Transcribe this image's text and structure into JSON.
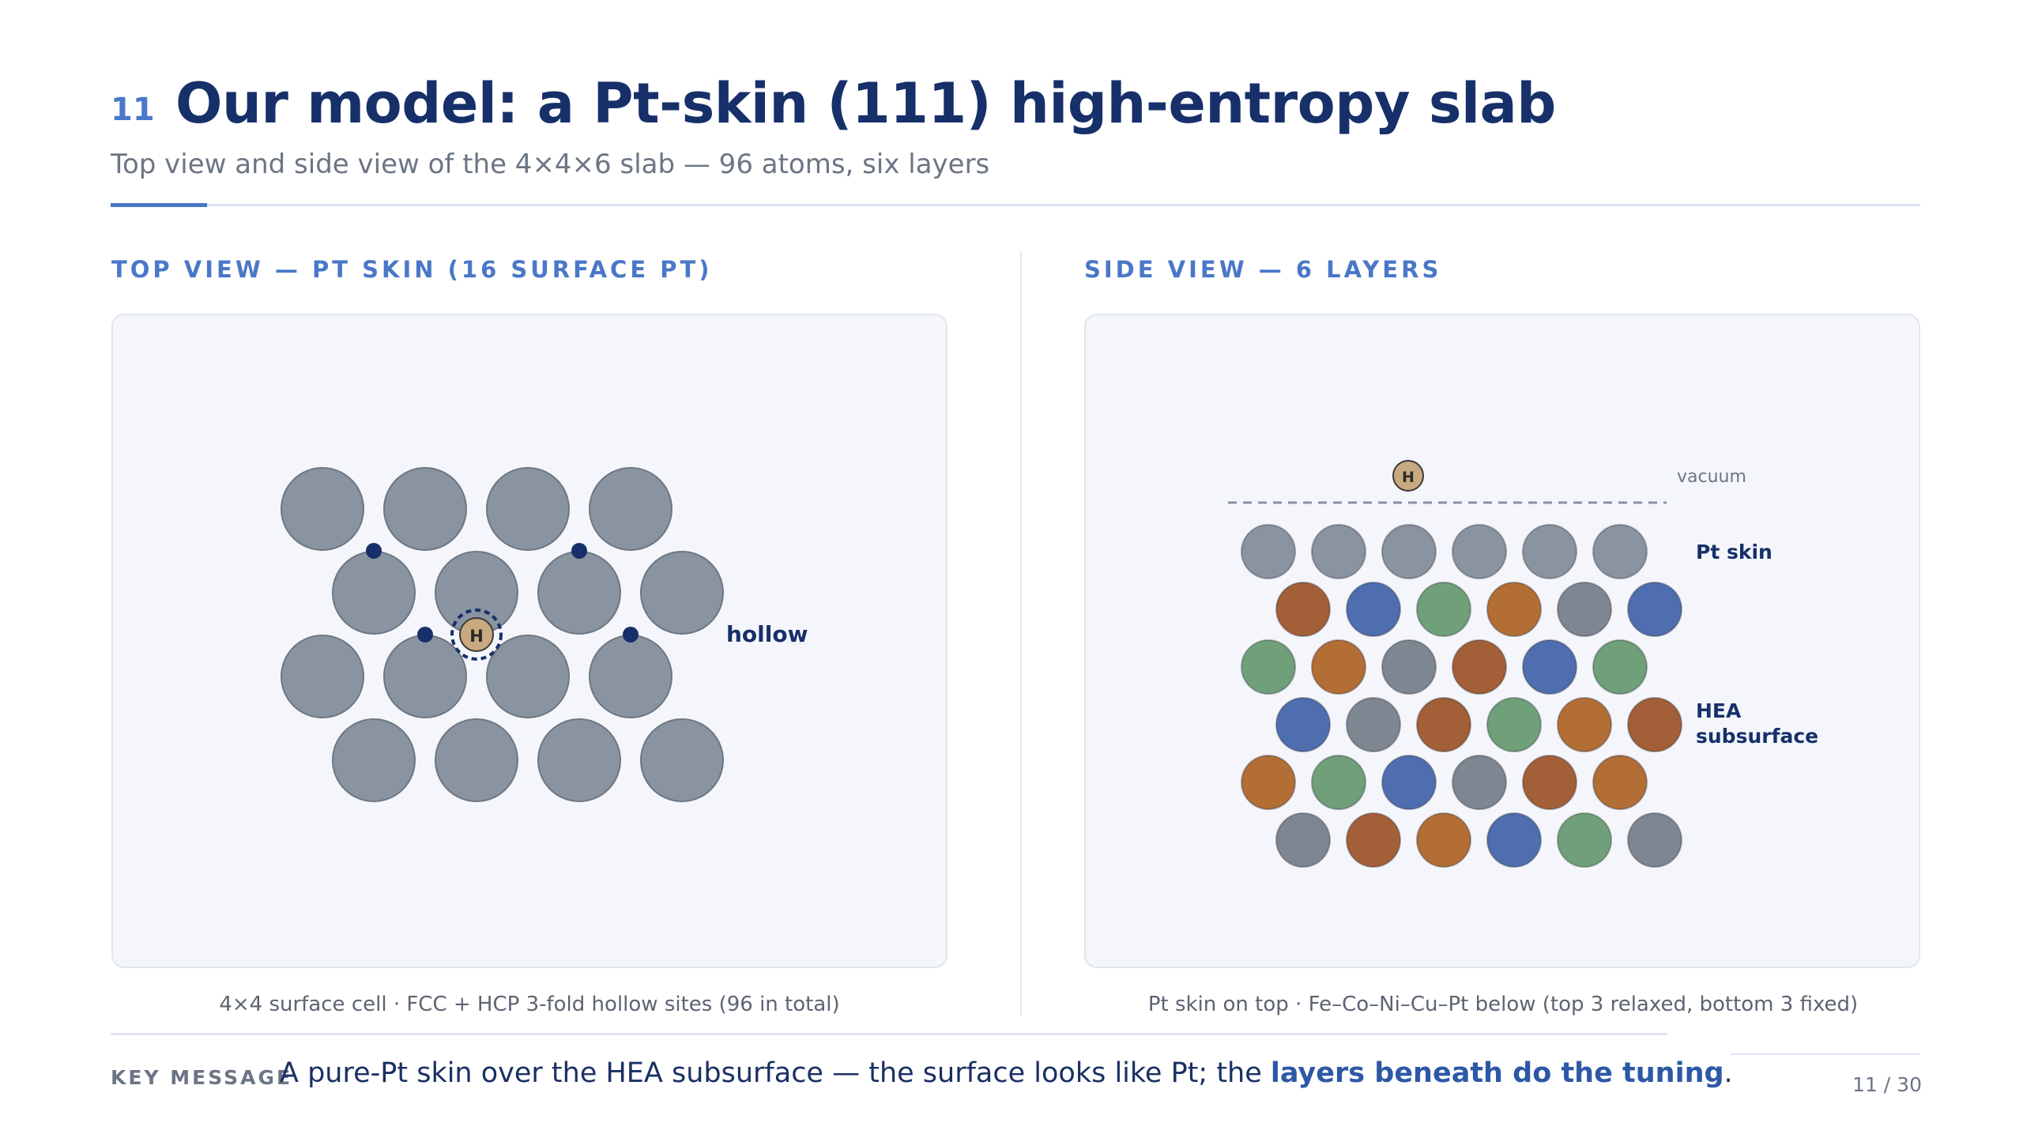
{
  "header": {
    "slide_number": "11",
    "title": "Our model: a Pt-skin (111) high-entropy slab",
    "subtitle": "Top view and side view of the 4×4×6 slab — 96 atoms, six layers"
  },
  "top_view": {
    "section_label": "TOP VIEW — PT SKIN (16 SURFACE PT)",
    "adsorbate_label": "H",
    "site_label": "hollow",
    "caption": "4×4 surface cell · FCC + HCP 3-fold hollow sites (96 in total)"
  },
  "side_view": {
    "section_label": "SIDE VIEW — 6 LAYERS",
    "adsorbate_label": "H",
    "vacuum_label": "vacuum",
    "skin_label": "Pt skin",
    "subsurface_label_line1": "HEA",
    "subsurface_label_line2": "subsurface",
    "caption": "Pt skin on top · Fe–Co–Ni–Cu–Pt below (top 3 relaxed, bottom 3 fixed)",
    "layers": [
      [
        "Pt",
        "Pt",
        "Pt",
        "Pt",
        "Pt",
        "Pt"
      ],
      [
        "Cu",
        "Co",
        "Ni",
        "Fe",
        "Pt",
        "Co"
      ],
      [
        "Ni",
        "Fe",
        "Pt",
        "Cu",
        "Co",
        "Ni"
      ],
      [
        "Co",
        "Pt",
        "Cu",
        "Ni",
        "Fe",
        "Cu"
      ],
      [
        "Fe",
        "Ni",
        "Co",
        "Pt",
        "Cu",
        "Fe"
      ],
      [
        "Pt",
        "Cu",
        "Fe",
        "Co",
        "Ni",
        "Pt"
      ]
    ]
  },
  "colors": {
    "accent": "#4a78c8",
    "navy": "#17306a",
    "skin_pt": "#8a93a0",
    "Pt": "#7d8691",
    "Fe": "#b36e35",
    "Co": "#4e6eaf",
    "Ni": "#6fa07a",
    "Cu": "#a35f37",
    "H": "#c9a97f",
    "site_dot": "#17306a"
  },
  "key_message": {
    "label": "KEY MESSAGE",
    "text_plain": "A pure-Pt skin over the HEA subsurface — the surface looks like Pt; the ",
    "text_bold": "layers beneath do the tuning",
    "text_end": "."
  },
  "pager": "11 / 30"
}
